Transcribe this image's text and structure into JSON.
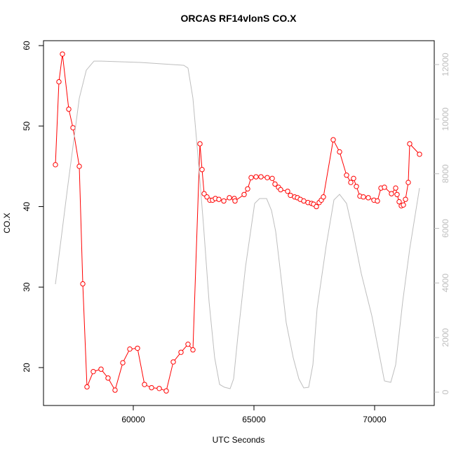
{
  "chart_data": {
    "type": "line",
    "title": "ORCAS RF14vlonS CO.X",
    "xlabel": "UTC Seconds",
    "ylabel": "CO.X",
    "xlim": [
      56279,
      72471
    ],
    "xticks": [
      60000,
      65000,
      70000
    ],
    "ylim": [
      15.29,
      60.61
    ],
    "yticks": [
      20,
      30,
      40,
      50,
      60
    ],
    "y2lim": [
      -488,
      12874
    ],
    "y2ticks": [
      0,
      2000,
      4000,
      6000,
      8000,
      10000,
      12000
    ],
    "series": [
      {
        "color": "#ff0000",
        "markers": true,
        "x": [
          56773,
          56918,
          57064,
          57326,
          57500,
          57762,
          57907,
          58081,
          58343,
          58663,
          58953,
          59244,
          59564,
          59855,
          60174,
          60465,
          60756,
          61076,
          61366,
          61657,
          61977,
          62267,
          62471,
          62762,
          62849,
          62936,
          63052,
          63169,
          63285,
          63401,
          63546,
          63750,
          63983,
          64186,
          64215,
          64593,
          64738,
          64884,
          65087,
          65291,
          65552,
          65756,
          65872,
          66017,
          66105,
          66395,
          66512,
          66686,
          66802,
          66919,
          67064,
          67238,
          67384,
          67471,
          67587,
          67703,
          67791,
          67878,
          68285,
          68547,
          68837,
          69012,
          69128,
          69244,
          69390,
          69535,
          69738,
          69971,
          70116,
          70262,
          70407,
          70698,
          70872,
          70930,
          71017,
          71105,
          71192,
          71279,
          71395,
          71453,
          71860
        ],
        "values": [
          45.2,
          55.5,
          58.95,
          52.1,
          49.8,
          45.0,
          30.4,
          17.6,
          19.5,
          19.8,
          18.7,
          17.2,
          20.6,
          22.3,
          22.4,
          17.9,
          17.5,
          17.4,
          17.1,
          20.7,
          21.9,
          22.9,
          22.2,
          47.8,
          44.6,
          41.6,
          41.2,
          40.8,
          40.8,
          41.0,
          40.9,
          40.7,
          41.1,
          41.0,
          40.7,
          41.5,
          42.2,
          43.6,
          43.7,
          43.7,
          43.6,
          43.5,
          42.8,
          42.4,
          42.1,
          41.9,
          41.4,
          41.2,
          41.1,
          40.9,
          40.7,
          40.5,
          40.4,
          40.3,
          40.0,
          40.5,
          40.8,
          41.2,
          48.3,
          46.8,
          43.9,
          43.0,
          43.5,
          42.5,
          41.3,
          41.2,
          41.1,
          40.8,
          40.7,
          42.3,
          42.4,
          41.6,
          42.3,
          41.5,
          40.6,
          40.1,
          40.2,
          40.9,
          43.0,
          47.8,
          46.5
        ]
      },
      {
        "color": "#bebebe",
        "axis": "y2",
        "markers": false,
        "x": [
          56773,
          57267,
          57762,
          58052,
          58372,
          58692,
          60291,
          62093,
          62267,
          62471,
          62674,
          62907,
          63140,
          63372,
          63576,
          63779,
          64012,
          64157,
          64331,
          64651,
          65029,
          65233,
          65523,
          65727,
          65901,
          66105,
          66337,
          66628,
          66861,
          67064,
          67267,
          67442,
          67616,
          67994,
          68314,
          68547,
          68837,
          69099,
          69448,
          69884,
          70407,
          70669,
          70872,
          71163,
          71453,
          71860
        ],
        "values": [
          3957,
          7425,
          10766,
          11793,
          12127,
          12127,
          12076,
          11973,
          11871,
          10766,
          8710,
          6141,
          3314,
          1259,
          283,
          180,
          128,
          488,
          2030,
          4599,
          6912,
          7091,
          7091,
          6655,
          5884,
          4342,
          2544,
          1259,
          488,
          154,
          180,
          1002,
          3058,
          5370,
          7040,
          7246,
          6912,
          5884,
          4342,
          2801,
          411,
          360,
          1002,
          3314,
          5241,
          7477
        ]
      }
    ]
  }
}
